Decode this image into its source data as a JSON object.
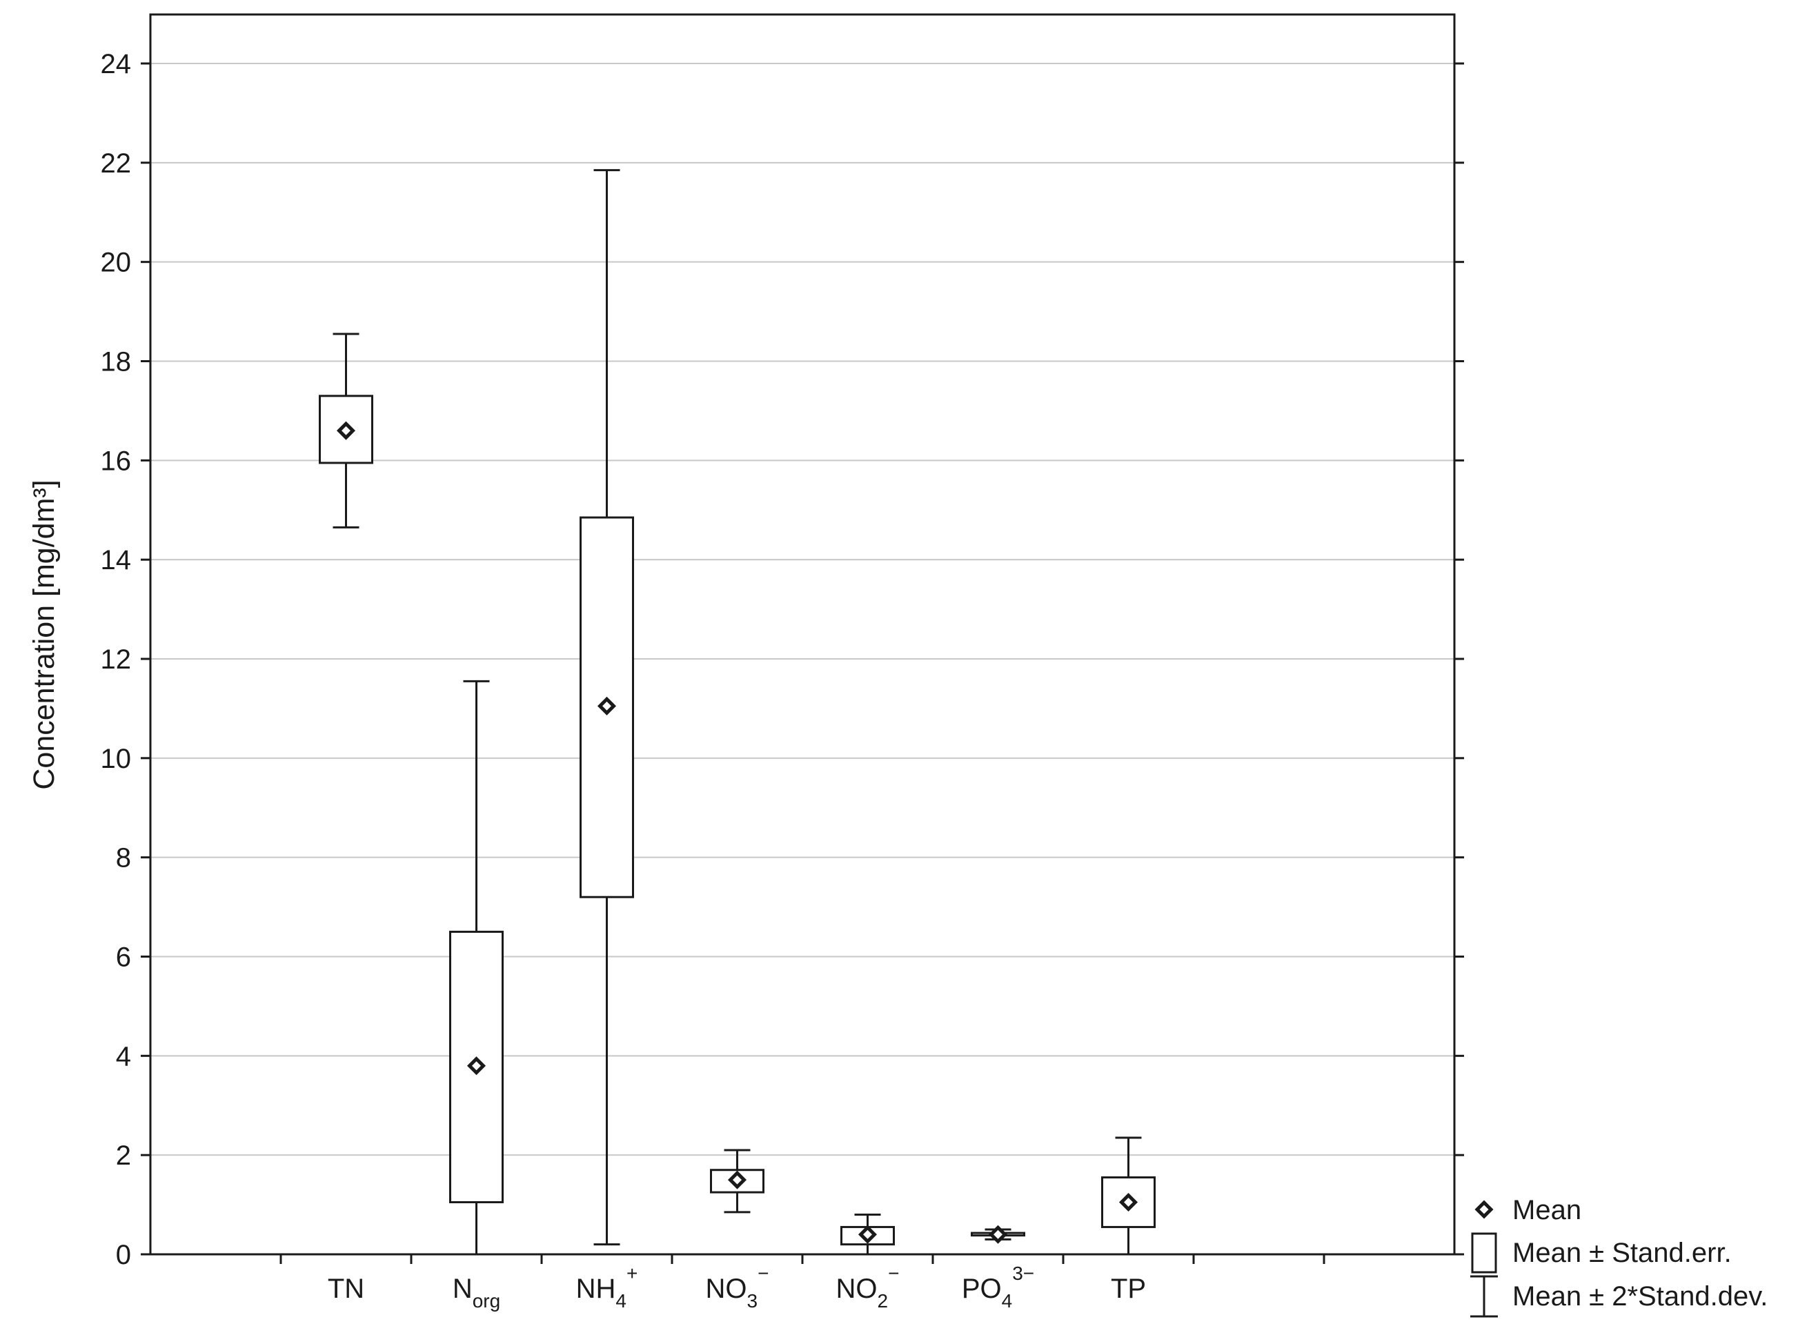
{
  "chart_data": {
    "type": "box",
    "ylabel": "Concentration [mg/dm³]",
    "ylim": [
      0,
      24
    ],
    "yticks": [
      0,
      2,
      4,
      6,
      8,
      10,
      12,
      14,
      16,
      18,
      20,
      22,
      24
    ],
    "grid": true,
    "legend_position": "right-bottom",
    "categories": [
      {
        "base": "TN",
        "sub": "",
        "sup": ""
      },
      {
        "base": "N",
        "sub": "org",
        "sup": ""
      },
      {
        "base": "NH",
        "sub": "4",
        "sup": "+"
      },
      {
        "base": "NO",
        "sub": "3",
        "sup": "−"
      },
      {
        "base": "NO",
        "sub": "2",
        "sup": "−"
      },
      {
        "base": "PO",
        "sub": "4",
        "sup": "3−"
      },
      {
        "base": "TP",
        "sub": "",
        "sup": ""
      }
    ],
    "series": [
      {
        "category": "TN",
        "mean": 16.6,
        "se_low": 15.95,
        "se_high": 17.3,
        "sd_low": 14.65,
        "sd_high": 18.55
      },
      {
        "category": "Norg",
        "mean": 3.8,
        "se_low": 1.05,
        "se_high": 6.5,
        "sd_low": 0,
        "sd_high": 11.55
      },
      {
        "category": "NH4+",
        "mean": 11.05,
        "se_low": 7.2,
        "se_high": 14.85,
        "sd_low": 0.2,
        "sd_high": 21.85
      },
      {
        "category": "NO3-",
        "mean": 1.5,
        "se_low": 1.25,
        "se_high": 1.7,
        "sd_low": 0.85,
        "sd_high": 2.1
      },
      {
        "category": "NO2-",
        "mean": 0.4,
        "se_low": 0.2,
        "se_high": 0.55,
        "sd_low": 0.0,
        "sd_high": 0.8
      },
      {
        "category": "PO43-",
        "mean": 0.4,
        "se_low": 0.38,
        "se_high": 0.43,
        "sd_low": 0.3,
        "sd_high": 0.5
      },
      {
        "category": "TP",
        "mean": 1.05,
        "se_low": 0.55,
        "se_high": 1.55,
        "sd_low": 0.0,
        "sd_high": 2.35
      }
    ],
    "legend": [
      {
        "symbol": "diamond",
        "label": "Mean"
      },
      {
        "symbol": "box",
        "label": "Mean ± Stand.err."
      },
      {
        "symbol": "whisker",
        "label": "Mean ± 2*Stand.dev."
      }
    ]
  }
}
